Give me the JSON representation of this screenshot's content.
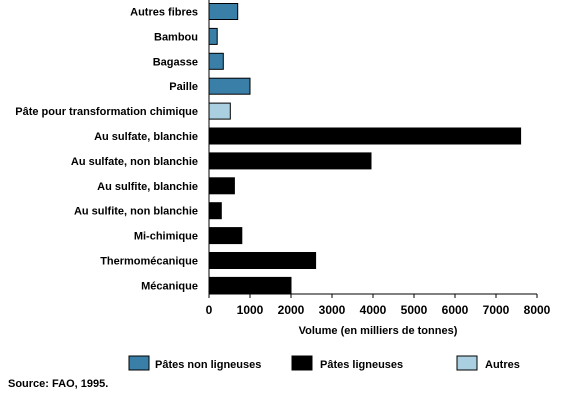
{
  "chart_data": {
    "type": "bar",
    "orientation": "horizontal",
    "categories": [
      "Autres fibres",
      "Bambou",
      "Bagasse",
      "Paille",
      "Pâte pour transformation chimique",
      "Au sulfate, blanchie",
      "Au sulfate, non blanchie",
      "Au sulfite, blanchie",
      "Au sulfite, non blanchie",
      "Mi-chimique",
      "Thermomécanique",
      "Mécanique"
    ],
    "values": [
      700,
      200,
      350,
      1000,
      520,
      7600,
      3950,
      620,
      300,
      800,
      2600,
      2000
    ],
    "groups": [
      0,
      0,
      0,
      0,
      2,
      1,
      1,
      1,
      1,
      1,
      1,
      1
    ],
    "legend": [
      {
        "label": "Pâtes non ligneuses",
        "color": "#3a7fa8"
      },
      {
        "label": "Pâtes ligneuses",
        "color": "#000000"
      },
      {
        "label": "Autres",
        "color": "#a9cfe0"
      }
    ],
    "xlabel": "Volume (en milliers de tonnes)",
    "xlim": [
      0,
      8000
    ],
    "xticks": [
      0,
      1000,
      2000,
      3000,
      4000,
      5000,
      6000,
      7000,
      8000
    ],
    "xtick_labels": [
      "0",
      "1000",
      "2000",
      "3000",
      "4000",
      "5000",
      "6000",
      "7000",
      "8000"
    ],
    "grid": false,
    "legend_position": "bottom"
  },
  "source": "Source: FAO, 1995."
}
